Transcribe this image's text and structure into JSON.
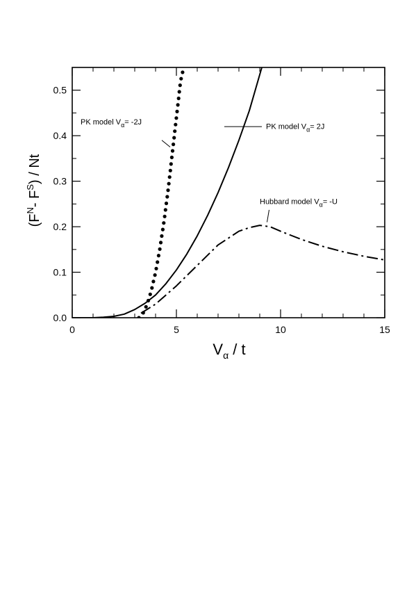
{
  "chart_data": {
    "type": "line",
    "title": "",
    "xlabel": {
      "base": "V",
      "sub": "α",
      "rest": " / t"
    },
    "ylabel": {
      "p1": "(F",
      "sup1": "N",
      "p2": "- F",
      "sup2": "S",
      "p3": ") / Nt"
    },
    "xlim": [
      0,
      15
    ],
    "ylim": [
      0,
      0.55
    ],
    "xticks": [
      0,
      5,
      10,
      15
    ],
    "xtick_labels": [
      "0",
      "5",
      "10",
      "15"
    ],
    "yticks": [
      0,
      0.1,
      0.2,
      0.3,
      0.4,
      0.5
    ],
    "ytick_labels": [
      "0.0",
      "0.1",
      "0.2",
      "0.3",
      "0.4",
      "0.5"
    ],
    "grid": false,
    "series": [
      {
        "style": "solid",
        "x": [
          0,
          1,
          1.5,
          2,
          2.5,
          3,
          3.5,
          4,
          4.5,
          5,
          5.5,
          6,
          6.5,
          7,
          7.5,
          8,
          8.5,
          9.1
        ],
        "y": [
          0,
          0,
          0.001,
          0.003,
          0.008,
          0.018,
          0.032,
          0.05,
          0.075,
          0.105,
          0.14,
          0.18,
          0.225,
          0.275,
          0.33,
          0.39,
          0.455,
          0.55
        ]
      },
      {
        "style": "dotted",
        "x": [
          3.2,
          3.4,
          3.6,
          3.8,
          4.0,
          4.2,
          4.4,
          4.6,
          4.8,
          5.0,
          5.2,
          5.4
        ],
        "y": [
          0.0,
          0.01,
          0.03,
          0.06,
          0.1,
          0.15,
          0.21,
          0.28,
          0.36,
          0.44,
          0.52,
          0.56
        ]
      },
      {
        "style": "dash-dot",
        "x": [
          3.3,
          4,
          5,
          6,
          7,
          8,
          8.5,
          9,
          9.5,
          10,
          11,
          12,
          13,
          14,
          15
        ],
        "y": [
          0.01,
          0.03,
          0.07,
          0.115,
          0.16,
          0.19,
          0.198,
          0.203,
          0.2,
          0.19,
          0.172,
          0.157,
          0.145,
          0.135,
          0.127
        ]
      }
    ],
    "annotations": [
      {
        "id": "pk-m2j",
        "text_main": "PK model  V",
        "sub": "α",
        "text_rest": "= -2J",
        "x": 0.4,
        "y": 0.425,
        "pointer": {
          "from": [
            4.3,
            0.39
          ],
          "to": [
            4.7,
            0.375
          ]
        }
      },
      {
        "id": "pk-2j",
        "text_main": "PK model  V",
        "sub": "α",
        "text_rest": "= 2J",
        "x": 9.3,
        "y": 0.415,
        "pointer": {
          "from": [
            7.3,
            0.42
          ],
          "to": [
            9.1,
            0.42
          ]
        }
      },
      {
        "id": "hubbard",
        "text_main": "Hubbard model  V",
        "sub": "α",
        "text_rest": "= -U",
        "x": 9.0,
        "y": 0.25,
        "pointer": {
          "from": [
            9.45,
            0.237
          ],
          "to": [
            9.35,
            0.21
          ]
        }
      }
    ]
  }
}
